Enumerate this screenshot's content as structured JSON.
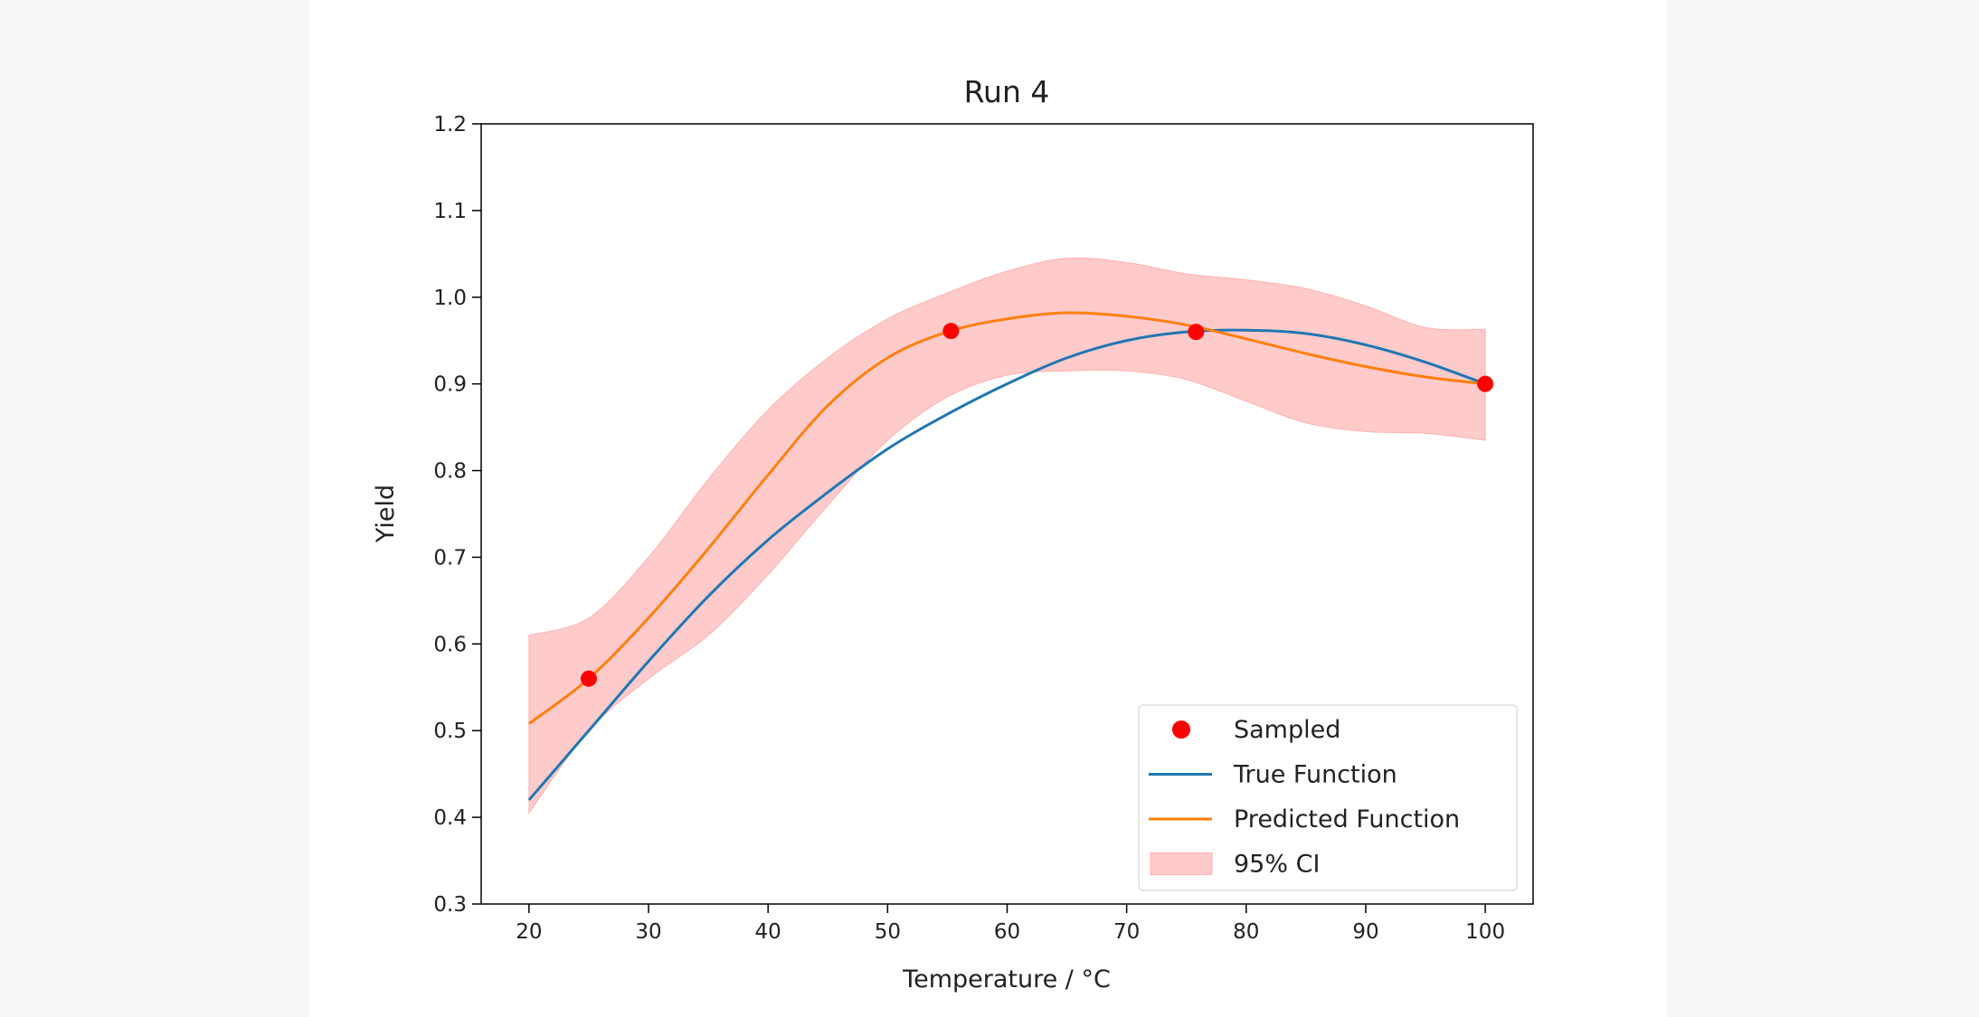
{
  "chart_data": {
    "type": "line",
    "title": "Run 4",
    "xlabel": "Temperature / °C",
    "ylabel": "Yield",
    "xlim": [
      16,
      104
    ],
    "ylim": [
      0.3,
      1.2
    ],
    "xticks": [
      20,
      30,
      40,
      50,
      60,
      70,
      80,
      90,
      100
    ],
    "yticks": [
      "0.3",
      "0.4",
      "0.5",
      "0.6",
      "0.7",
      "0.8",
      "0.9",
      "1.0",
      "1.1",
      "1.2"
    ],
    "grid": false,
    "legend_placement": "lower right",
    "x": [
      20,
      25,
      30,
      35,
      40,
      45,
      50,
      55,
      60,
      65,
      70,
      75,
      80,
      85,
      90,
      95,
      100
    ],
    "series": [
      {
        "name": "True Function",
        "color": "#1f77b4",
        "values": [
          0.42,
          0.5,
          0.58,
          0.655,
          0.72,
          0.775,
          0.825,
          0.865,
          0.9,
          0.93,
          0.95,
          0.96,
          0.962,
          0.958,
          0.945,
          0.925,
          0.9
        ]
      },
      {
        "name": "Predicted Function",
        "color": "#ff7f0e",
        "values": [
          0.508,
          0.56,
          0.63,
          0.71,
          0.795,
          0.875,
          0.93,
          0.96,
          0.975,
          0.982,
          0.978,
          0.968,
          0.952,
          0.935,
          0.92,
          0.908,
          0.9
        ]
      }
    ],
    "band": {
      "name": "95% CI",
      "color": "#ffb3b3",
      "upper": [
        0.61,
        0.63,
        0.7,
        0.79,
        0.87,
        0.93,
        0.975,
        1.005,
        1.03,
        1.045,
        1.04,
        1.027,
        1.02,
        1.01,
        0.99,
        0.965,
        0.963
      ],
      "lower": [
        0.405,
        0.5,
        0.56,
        0.61,
        0.68,
        0.76,
        0.835,
        0.885,
        0.91,
        0.915,
        0.915,
        0.905,
        0.88,
        0.855,
        0.845,
        0.843,
        0.835
      ]
    },
    "scatter": {
      "name": "Sampled",
      "color": "#ff0000",
      "points": [
        [
          25,
          0.56
        ],
        [
          55.3,
          0.961
        ],
        [
          75.8,
          0.96
        ],
        [
          100,
          0.9
        ]
      ]
    }
  }
}
